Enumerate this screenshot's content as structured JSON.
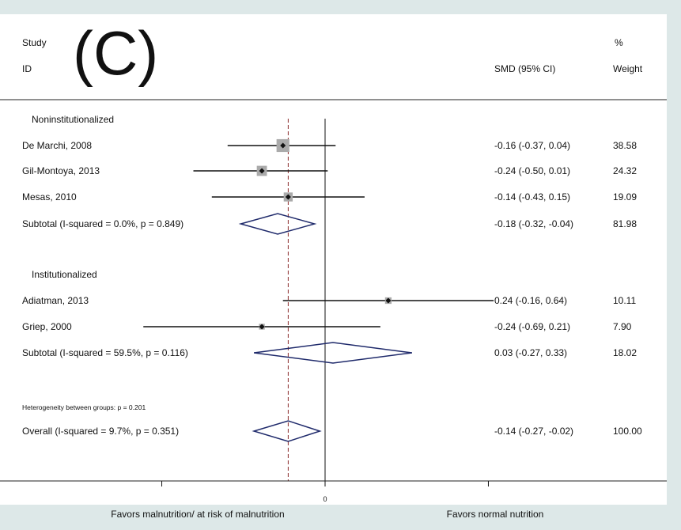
{
  "chart_data": {
    "type": "forest",
    "panel_label": "(C)",
    "header": {
      "study_label": "Study",
      "id_label": "ID",
      "effect_label": "SMD (95% CI)",
      "weight_pct_label": "%",
      "weight_label": "Weight"
    },
    "groups": [
      {
        "name": "Noninstitutionalized",
        "studies": [
          {
            "label": "De Marchi, 2008",
            "est": -0.16,
            "lo": -0.37,
            "hi": 0.04,
            "ci_text": "-0.16 (-0.37, 0.04)",
            "weight": "38.58"
          },
          {
            "label": "Gil-Montoya, 2013",
            "est": -0.24,
            "lo": -0.5,
            "hi": 0.01,
            "ci_text": "-0.24 (-0.50, 0.01)",
            "weight": "24.32"
          },
          {
            "label": "Mesas, 2010",
            "est": -0.14,
            "lo": -0.43,
            "hi": 0.15,
            "ci_text": "-0.14 (-0.43, 0.15)",
            "weight": "19.09"
          }
        ],
        "subtotal": {
          "label": "Subtotal  (I-squared = 0.0%, p = 0.849)",
          "est": -0.18,
          "lo": -0.32,
          "hi": -0.04,
          "ci_text": "-0.18 (-0.32, -0.04)",
          "weight": "81.98"
        }
      },
      {
        "name": "Institutionalized",
        "studies": [
          {
            "label": "Adiatman, 2013",
            "est": 0.24,
            "lo": -0.16,
            "hi": 0.64,
            "ci_text": "0.24 (-0.16, 0.64)",
            "weight": "10.11"
          },
          {
            "label": "Griep, 2000",
            "est": -0.24,
            "lo": -0.69,
            "hi": 0.21,
            "ci_text": "-0.24 (-0.69, 0.21)",
            "weight": "7.90"
          }
        ],
        "subtotal": {
          "label": "Subtotal  (I-squared = 59.5%, p = 0.116)",
          "est": 0.03,
          "lo": -0.27,
          "hi": 0.33,
          "ci_text": "0.03 (-0.27, 0.33)",
          "weight": "18.02"
        }
      }
    ],
    "heterogeneity_note": "Heterogeneity between groups: p = 0.201",
    "overall": {
      "label": "Overall  (I-squared = 9.7%, p = 0.351)",
      "est": -0.14,
      "lo": -0.27,
      "hi": -0.02,
      "ci_text": "-0.14 (-0.27, -0.02)",
      "weight": "100.00"
    },
    "xaxis": {
      "null_value": 0,
      "tick_labels": [
        "",
        "0",
        ""
      ],
      "tick_values": [
        -0.62,
        0,
        0.62
      ]
    },
    "left_footer": "Favors malnutrition/ at risk of malnutrition",
    "right_footer": "Favors normal nutrition",
    "colors": {
      "diamond": "#1f2a6b",
      "box": "#aaaaaa",
      "overall_line": "#8b2a2a",
      "background": "#dde8e8",
      "panel": "#ffffff"
    }
  }
}
